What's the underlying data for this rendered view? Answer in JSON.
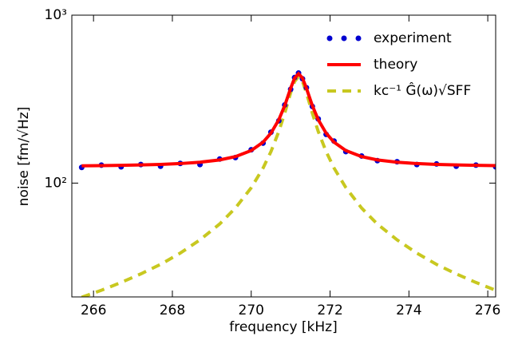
{
  "chart_data": {
    "type": "line",
    "xlabel": "frequency [kHz]",
    "ylabel": "noise [fm/√Hz]",
    "x": [
      265.7,
      266.2,
      266.7,
      267.2,
      267.7,
      268.2,
      268.7,
      269.2,
      269.6,
      270.0,
      270.3,
      270.5,
      270.7,
      270.85,
      271.0,
      271.1,
      271.2,
      271.3,
      271.4,
      271.55,
      271.7,
      271.9,
      272.1,
      272.4,
      272.8,
      273.2,
      273.7,
      274.2,
      274.7,
      275.2,
      275.7,
      276.2
    ],
    "series": [
      {
        "name": "experiment",
        "color": "#0000d0",
        "style": "markers",
        "values": [
          124,
          128,
          125,
          129,
          126,
          131,
          129,
          139,
          142,
          158,
          173,
          201,
          235,
          292,
          362,
          425,
          452,
          418,
          370,
          286,
          241,
          195,
          178,
          154,
          145,
          136,
          134,
          129,
          130,
          126,
          128,
          125
        ]
      },
      {
        "name": "theory",
        "color": "#ff0000",
        "style": "solid",
        "values": [
          126.7,
          127.1,
          127.6,
          128.3,
          129.2,
          130.7,
          133.2,
          137.4,
          143.8,
          156.3,
          175.2,
          198.3,
          238.4,
          289.4,
          366.9,
          421.9,
          447.8,
          421.9,
          366.9,
          289.4,
          238.4,
          198.3,
          175.2,
          156.3,
          143.8,
          137.4,
          133.2,
          130.7,
          129.2,
          128.3,
          127.6,
          127.1
        ]
      },
      {
        "name": "kc⁻¹ Ĝ(ω)√SFF",
        "color": "#c8c820",
        "style": "dashed",
        "values": [
          20.9,
          23.0,
          25.6,
          28.8,
          32.8,
          38.3,
          45.9,
          57.1,
          71.1,
          93.8,
          122.8,
          153.9,
          203,
          261,
          345,
          403,
          430,
          403,
          345,
          261,
          203,
          154,
          123,
          94,
          71,
          57,
          45.9,
          38.3,
          32.8,
          28.8,
          25.6,
          23.0
        ]
      }
    ],
    "xlim": [
      265.45,
      276.2
    ],
    "xticks": [
      266,
      268,
      270,
      272,
      274,
      276
    ],
    "ylim": [
      21,
      1000
    ],
    "yscale": "log",
    "yticks": [
      {
        "value": 100,
        "label": "10²"
      },
      {
        "value": 1000,
        "label": "10³"
      }
    ],
    "legend": "upper right"
  }
}
